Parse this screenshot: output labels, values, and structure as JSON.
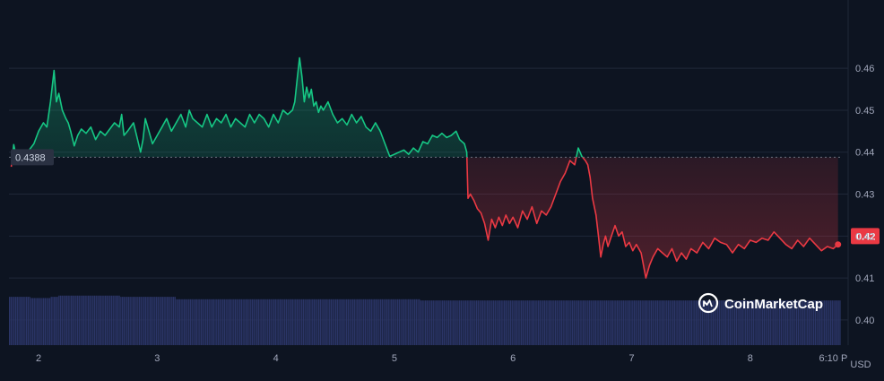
{
  "brand": {
    "name": "CoinMarketCap",
    "icon": "coinmarketcap-logo-icon"
  },
  "currency_label": "USD",
  "colors": {
    "background": "#0d1421",
    "up": "#16c784",
    "down": "#ea3943",
    "volume": "#2b3567",
    "grid": "#1f2738",
    "axis_text": "#a1a7bb"
  },
  "reference_price": "0.4388",
  "current_price": "0.42",
  "chart_data": {
    "type": "line",
    "title": "",
    "xlabel": "",
    "ylabel": "USD",
    "ylim": [
      0.394,
      0.472
    ],
    "y_ticks": [
      {
        "value": 0.4,
        "label": "0.40"
      },
      {
        "value": 0.41,
        "label": "0.41"
      },
      {
        "value": 0.42,
        "label": "0.42"
      },
      {
        "value": 0.43,
        "label": "0.43"
      },
      {
        "value": 0.44,
        "label": "0.44"
      },
      {
        "value": 0.45,
        "label": "0.45"
      },
      {
        "value": 0.46,
        "label": "0.46"
      }
    ],
    "x_ticks": [
      {
        "value": 2,
        "label": "2"
      },
      {
        "value": 3,
        "label": "3"
      },
      {
        "value": 4,
        "label": "4"
      },
      {
        "value": 5,
        "label": "5"
      },
      {
        "value": 6,
        "label": "6"
      },
      {
        "value": 7,
        "label": "7"
      },
      {
        "value": 8,
        "label": "8"
      },
      {
        "value": 8.7,
        "label": "6:10 P"
      }
    ],
    "xlim": [
      1.75,
      8.78
    ],
    "reference_line": 0.4388,
    "grid": true,
    "price_points": [
      [
        1.77,
        0.4365
      ],
      [
        1.79,
        0.4418
      ],
      [
        1.81,
        0.4392
      ],
      [
        1.84,
        0.44
      ],
      [
        1.88,
        0.4395
      ],
      [
        1.92,
        0.4405
      ],
      [
        1.96,
        0.442
      ],
      [
        2.0,
        0.445
      ],
      [
        2.04,
        0.447
      ],
      [
        2.07,
        0.446
      ],
      [
        2.1,
        0.452
      ],
      [
        2.13,
        0.4595
      ],
      [
        2.15,
        0.452
      ],
      [
        2.17,
        0.454
      ],
      [
        2.2,
        0.45
      ],
      [
        2.23,
        0.448
      ],
      [
        2.25,
        0.447
      ],
      [
        2.27,
        0.445
      ],
      [
        2.3,
        0.4415
      ],
      [
        2.33,
        0.444
      ],
      [
        2.36,
        0.4455
      ],
      [
        2.4,
        0.4445
      ],
      [
        2.44,
        0.446
      ],
      [
        2.48,
        0.443
      ],
      [
        2.52,
        0.445
      ],
      [
        2.56,
        0.444
      ],
      [
        2.6,
        0.4455
      ],
      [
        2.64,
        0.447
      ],
      [
        2.68,
        0.446
      ],
      [
        2.7,
        0.449
      ],
      [
        2.72,
        0.444
      ],
      [
        2.75,
        0.445
      ],
      [
        2.8,
        0.447
      ],
      [
        2.83,
        0.4435
      ],
      [
        2.86,
        0.44
      ],
      [
        2.88,
        0.443
      ],
      [
        2.9,
        0.448
      ],
      [
        2.93,
        0.445
      ],
      [
        2.96,
        0.442
      ],
      [
        3.0,
        0.444
      ],
      [
        3.04,
        0.446
      ],
      [
        3.08,
        0.448
      ],
      [
        3.12,
        0.445
      ],
      [
        3.16,
        0.447
      ],
      [
        3.2,
        0.449
      ],
      [
        3.24,
        0.446
      ],
      [
        3.27,
        0.45
      ],
      [
        3.3,
        0.448
      ],
      [
        3.34,
        0.447
      ],
      [
        3.38,
        0.446
      ],
      [
        3.42,
        0.449
      ],
      [
        3.46,
        0.446
      ],
      [
        3.5,
        0.448
      ],
      [
        3.54,
        0.447
      ],
      [
        3.58,
        0.449
      ],
      [
        3.62,
        0.446
      ],
      [
        3.66,
        0.448
      ],
      [
        3.7,
        0.447
      ],
      [
        3.74,
        0.446
      ],
      [
        3.78,
        0.449
      ],
      [
        3.82,
        0.447
      ],
      [
        3.86,
        0.449
      ],
      [
        3.9,
        0.448
      ],
      [
        3.94,
        0.446
      ],
      [
        3.98,
        0.449
      ],
      [
        4.02,
        0.447
      ],
      [
        4.06,
        0.45
      ],
      [
        4.1,
        0.449
      ],
      [
        4.14,
        0.45
      ],
      [
        4.16,
        0.452
      ],
      [
        4.18,
        0.4575
      ],
      [
        4.2,
        0.4625
      ],
      [
        4.22,
        0.458
      ],
      [
        4.24,
        0.452
      ],
      [
        4.26,
        0.4555
      ],
      [
        4.28,
        0.453
      ],
      [
        4.3,
        0.455
      ],
      [
        4.32,
        0.451
      ],
      [
        4.34,
        0.452
      ],
      [
        4.36,
        0.4495
      ],
      [
        4.38,
        0.451
      ],
      [
        4.4,
        0.45
      ],
      [
        4.44,
        0.452
      ],
      [
        4.48,
        0.449
      ],
      [
        4.52,
        0.447
      ],
      [
        4.56,
        0.448
      ],
      [
        4.6,
        0.4465
      ],
      [
        4.64,
        0.449
      ],
      [
        4.68,
        0.447
      ],
      [
        4.72,
        0.4485
      ],
      [
        4.76,
        0.446
      ],
      [
        4.8,
        0.445
      ],
      [
        4.84,
        0.447
      ],
      [
        4.88,
        0.445
      ],
      [
        4.92,
        0.442
      ],
      [
        4.96,
        0.439
      ],
      [
        5.0,
        0.4395
      ],
      [
        5.04,
        0.44
      ],
      [
        5.08,
        0.4405
      ],
      [
        5.12,
        0.4395
      ],
      [
        5.16,
        0.441
      ],
      [
        5.2,
        0.44
      ],
      [
        5.24,
        0.4425
      ],
      [
        5.28,
        0.442
      ],
      [
        5.32,
        0.444
      ],
      [
        5.36,
        0.4435
      ],
      [
        5.4,
        0.4445
      ],
      [
        5.44,
        0.4435
      ],
      [
        5.48,
        0.444
      ],
      [
        5.52,
        0.445
      ],
      [
        5.55,
        0.443
      ],
      [
        5.59,
        0.442
      ],
      [
        5.61,
        0.44
      ],
      [
        5.62,
        0.429
      ],
      [
        5.64,
        0.43
      ],
      [
        5.67,
        0.4285
      ],
      [
        5.7,
        0.4265
      ],
      [
        5.73,
        0.4255
      ],
      [
        5.76,
        0.423
      ],
      [
        5.79,
        0.419
      ],
      [
        5.82,
        0.424
      ],
      [
        5.85,
        0.422
      ],
      [
        5.88,
        0.4245
      ],
      [
        5.91,
        0.4225
      ],
      [
        5.94,
        0.425
      ],
      [
        5.97,
        0.423
      ],
      [
        6.0,
        0.4245
      ],
      [
        6.04,
        0.422
      ],
      [
        6.08,
        0.426
      ],
      [
        6.12,
        0.424
      ],
      [
        6.16,
        0.427
      ],
      [
        6.2,
        0.423
      ],
      [
        6.24,
        0.426
      ],
      [
        6.28,
        0.425
      ],
      [
        6.32,
        0.427
      ],
      [
        6.36,
        0.43
      ],
      [
        6.4,
        0.433
      ],
      [
        6.44,
        0.435
      ],
      [
        6.48,
        0.438
      ],
      [
        6.52,
        0.437
      ],
      [
        6.55,
        0.441
      ],
      [
        6.58,
        0.439
      ],
      [
        6.61,
        0.438
      ],
      [
        6.63,
        0.437
      ],
      [
        6.65,
        0.434
      ],
      [
        6.67,
        0.429
      ],
      [
        6.7,
        0.425
      ],
      [
        6.72,
        0.42
      ],
      [
        6.74,
        0.415
      ],
      [
        6.76,
        0.418
      ],
      [
        6.78,
        0.42
      ],
      [
        6.8,
        0.4175
      ],
      [
        6.83,
        0.42
      ],
      [
        6.86,
        0.4225
      ],
      [
        6.89,
        0.42
      ],
      [
        6.92,
        0.421
      ],
      [
        6.95,
        0.4175
      ],
      [
        6.98,
        0.4185
      ],
      [
        7.01,
        0.4165
      ],
      [
        7.04,
        0.418
      ],
      [
        7.08,
        0.416
      ],
      [
        7.12,
        0.41
      ],
      [
        7.15,
        0.413
      ],
      [
        7.18,
        0.415
      ],
      [
        7.22,
        0.417
      ],
      [
        7.26,
        0.416
      ],
      [
        7.3,
        0.415
      ],
      [
        7.34,
        0.417
      ],
      [
        7.38,
        0.414
      ],
      [
        7.42,
        0.416
      ],
      [
        7.46,
        0.4145
      ],
      [
        7.5,
        0.417
      ],
      [
        7.55,
        0.416
      ],
      [
        7.6,
        0.4185
      ],
      [
        7.65,
        0.417
      ],
      [
        7.7,
        0.4195
      ],
      [
        7.75,
        0.4185
      ],
      [
        7.8,
        0.418
      ],
      [
        7.85,
        0.416
      ],
      [
        7.9,
        0.418
      ],
      [
        7.95,
        0.417
      ],
      [
        8.0,
        0.419
      ],
      [
        8.05,
        0.4185
      ],
      [
        8.1,
        0.4195
      ],
      [
        8.15,
        0.419
      ],
      [
        8.2,
        0.421
      ],
      [
        8.25,
        0.4195
      ],
      [
        8.3,
        0.418
      ],
      [
        8.35,
        0.417
      ],
      [
        8.4,
        0.419
      ],
      [
        8.45,
        0.4175
      ],
      [
        8.5,
        0.4195
      ],
      [
        8.55,
        0.418
      ],
      [
        8.6,
        0.4165
      ],
      [
        8.65,
        0.4175
      ],
      [
        8.7,
        0.417
      ],
      [
        8.74,
        0.418
      ]
    ],
    "volume_values": [
      0.4,
      0.4,
      0.4,
      0.4,
      0.4,
      0.4,
      0.4,
      0.4,
      0.4,
      0.4,
      0.4,
      0.4,
      0.4,
      0.4,
      0.39,
      0.39,
      0.39,
      0.39,
      0.39,
      0.39,
      0.39,
      0.39,
      0.39,
      0.39,
      0.39,
      0.39,
      0.39,
      0.4,
      0.4,
      0.4,
      0.4,
      0.4,
      0.41,
      0.41,
      0.41,
      0.41,
      0.41,
      0.41,
      0.41,
      0.41,
      0.41,
      0.41,
      0.41,
      0.41,
      0.41,
      0.41,
      0.41,
      0.41,
      0.41,
      0.41,
      0.41,
      0.41,
      0.41,
      0.41,
      0.41,
      0.41,
      0.41,
      0.41,
      0.41,
      0.41,
      0.41,
      0.41,
      0.41,
      0.41,
      0.41,
      0.41,
      0.41,
      0.41,
      0.41,
      0.41,
      0.41,
      0.41,
      0.4,
      0.4,
      0.4,
      0.4,
      0.4,
      0.4,
      0.4,
      0.4,
      0.4,
      0.4,
      0.4,
      0.4,
      0.4,
      0.4,
      0.4,
      0.4,
      0.4,
      0.4,
      0.4,
      0.4,
      0.4,
      0.4,
      0.4,
      0.4,
      0.4,
      0.4,
      0.4,
      0.4,
      0.4,
      0.4,
      0.4,
      0.4,
      0.4,
      0.4,
      0.4,
      0.4,
      0.38,
      0.38,
      0.38,
      0.38,
      0.38,
      0.38,
      0.38,
      0.38,
      0.38,
      0.38,
      0.38,
      0.38,
      0.38,
      0.38,
      0.38,
      0.38,
      0.38,
      0.38,
      0.38,
      0.38,
      0.38,
      0.38,
      0.38,
      0.38,
      0.38,
      0.38,
      0.38,
      0.38,
      0.38,
      0.38,
      0.38,
      0.38,
      0.38,
      0.38,
      0.38,
      0.38,
      0.38,
      0.38,
      0.38,
      0.38,
      0.38,
      0.38,
      0.38,
      0.38,
      0.38,
      0.38,
      0.38,
      0.38,
      0.38,
      0.38,
      0.38,
      0.38,
      0.38,
      0.38,
      0.38,
      0.38,
      0.38,
      0.38,
      0.38,
      0.38,
      0.38,
      0.38,
      0.38,
      0.38,
      0.38,
      0.38,
      0.38,
      0.38,
      0.38,
      0.38,
      0.38,
      0.38,
      0.38,
      0.38,
      0.38,
      0.38,
      0.38,
      0.38,
      0.38,
      0.38,
      0.38,
      0.38,
      0.38,
      0.38,
      0.38,
      0.38,
      0.38,
      0.38,
      0.38,
      0.38,
      0.38,
      0.38,
      0.38,
      0.38,
      0.38,
      0.38,
      0.38,
      0.38,
      0.38,
      0.38,
      0.38,
      0.38,
      0.38,
      0.38,
      0.38,
      0.38,
      0.38,
      0.38,
      0.38,
      0.38,
      0.38,
      0.38,
      0.38,
      0.38,
      0.38,
      0.38,
      0.38,
      0.38,
      0.38,
      0.38,
      0.38,
      0.38,
      0.38,
      0.38,
      0.38,
      0.38,
      0.38,
      0.38,
      0.38,
      0.38,
      0.38,
      0.38,
      0.38,
      0.38,
      0.38,
      0.38,
      0.38,
      0.38,
      0.38,
      0.38,
      0.38,
      0.38,
      0.38,
      0.38,
      0.38,
      0.38,
      0.38,
      0.38,
      0.38,
      0.38,
      0.38,
      0.38,
      0.38,
      0.38,
      0.38,
      0.38,
      0.38,
      0.38,
      0.37,
      0.37,
      0.37,
      0.37,
      0.37,
      0.37,
      0.37,
      0.37,
      0.37,
      0.37,
      0.37,
      0.37,
      0.37,
      0.37,
      0.37,
      0.37,
      0.37,
      0.37,
      0.37,
      0.37,
      0.37,
      0.37,
      0.37,
      0.37,
      0.37,
      0.37,
      0.37,
      0.37,
      0.37,
      0.37,
      0.37,
      0.37,
      0.37,
      0.37,
      0.37,
      0.37,
      0.37,
      0.37,
      0.37,
      0.37,
      0.37,
      0.37,
      0.37,
      0.37,
      0.37,
      0.37,
      0.37,
      0.37,
      0.37,
      0.37,
      0.37,
      0.37,
      0.37,
      0.37,
      0.37,
      0.37,
      0.37,
      0.37,
      0.37,
      0.37,
      0.37,
      0.37,
      0.37,
      0.37,
      0.37,
      0.37,
      0.37,
      0.37,
      0.37,
      0.37,
      0.37,
      0.37,
      0.37,
      0.37,
      0.37,
      0.37,
      0.37,
      0.37,
      0.37,
      0.37,
      0.37,
      0.37,
      0.37,
      0.37,
      0.37,
      0.37,
      0.37,
      0.37,
      0.37,
      0.37,
      0.37,
      0.37,
      0.37,
      0.37,
      0.37,
      0.37,
      0.37,
      0.37,
      0.37,
      0.37,
      0.37,
      0.37,
      0.37,
      0.37,
      0.37,
      0.37,
      0.37,
      0.37,
      0.37,
      0.37,
      0.37,
      0.37,
      0.37,
      0.37,
      0.37,
      0.37,
      0.37,
      0.37,
      0.37,
      0.37,
      0.37,
      0.37,
      0.37,
      0.37,
      0.37,
      0.37,
      0.37,
      0.37,
      0.37,
      0.37,
      0.37,
      0.37,
      0.37,
      0.37,
      0.37,
      0.37,
      0.37,
      0.37,
      0.37,
      0.37,
      0.37,
      0.37,
      0.37,
      0.37,
      0.37,
      0.37,
      0.37,
      0.37,
      0.37,
      0.37,
      0.37,
      0.37,
      0.37,
      0.37,
      0.37,
      0.37,
      0.37,
      0.37,
      0.37,
      0.37,
      0.37,
      0.37,
      0.37,
      0.37,
      0.37,
      0.37,
      0.37,
      0.37,
      0.37,
      0.37,
      0.37,
      0.37,
      0.37,
      0.37,
      0.37,
      0.37,
      0.37,
      0.37,
      0.37,
      0.37,
      0.37,
      0.37,
      0.37,
      0.37,
      0.37,
      0.37,
      0.37,
      0.37,
      0.37,
      0.37,
      0.37,
      0.37,
      0.37,
      0.37,
      0.37,
      0.37,
      0.37,
      0.37,
      0.37,
      0.37,
      0.37,
      0.37,
      0.37,
      0.37,
      0.37,
      0.37,
      0.37,
      0.37,
      0.37,
      0.37,
      0.37,
      0.37,
      0.37,
      0.37,
      0.37,
      0.37,
      0.37,
      0.37,
      0.37,
      0.37,
      0.37,
      0.37,
      0.37,
      0.37,
      0.37,
      0.37,
      0.37,
      0.37,
      0.37,
      0.37,
      0.37,
      0.37,
      0.37,
      0.37,
      0.37,
      0.37,
      0.37,
      0.37,
      0.37,
      0.37,
      0.37,
      0.37,
      0.37,
      0.37,
      0.37,
      0.37,
      0.37,
      0.37,
      0.37,
      0.37,
      0.37,
      0.37,
      0.37,
      0.37,
      0.37,
      0.37,
      0.37,
      0.37,
      0.37,
      0.37,
      0.37,
      0.37,
      0.37,
      0.37,
      0.37,
      0.37,
      0.37,
      0.37,
      0.37,
      0.37,
      0.37,
      0.37
    ]
  }
}
